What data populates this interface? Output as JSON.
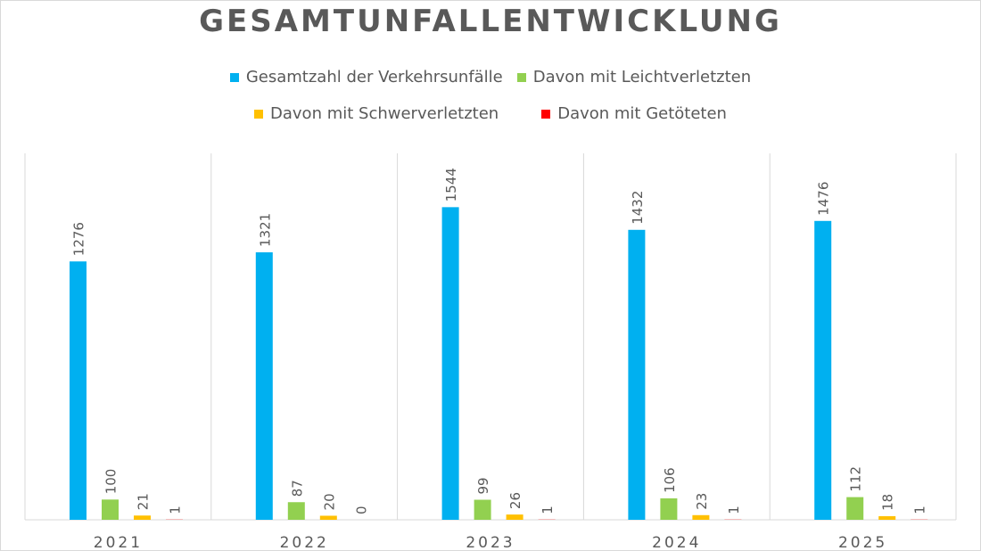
{
  "chart_data": {
    "type": "bar",
    "title": "GESAMTUNFALLENTWICKLUNG",
    "categories": [
      "2021",
      "2022",
      "2023",
      "2024",
      "2025"
    ],
    "series": [
      {
        "name": "Gesamtzahl der Verkehrsunfälle",
        "color": "#00B0F0",
        "values": [
          1276,
          1321,
          1544,
          1432,
          1476
        ]
      },
      {
        "name": "Davon mit Leichtverletzten",
        "color": "#92D050",
        "values": [
          100,
          87,
          99,
          106,
          112
        ]
      },
      {
        "name": "Davon mit Schwerverletzten",
        "color": "#FFC000",
        "values": [
          21,
          20,
          26,
          23,
          18
        ]
      },
      {
        "name": "Davon mit Getöteten",
        "color": "#FF0000",
        "values": [
          1,
          0,
          1,
          1,
          1
        ]
      }
    ],
    "xlabel": "",
    "ylabel": "",
    "ylim": [
      0,
      1600
    ],
    "grid": false,
    "vertical_separators": true,
    "legend_position": "top",
    "data_labels": true
  }
}
